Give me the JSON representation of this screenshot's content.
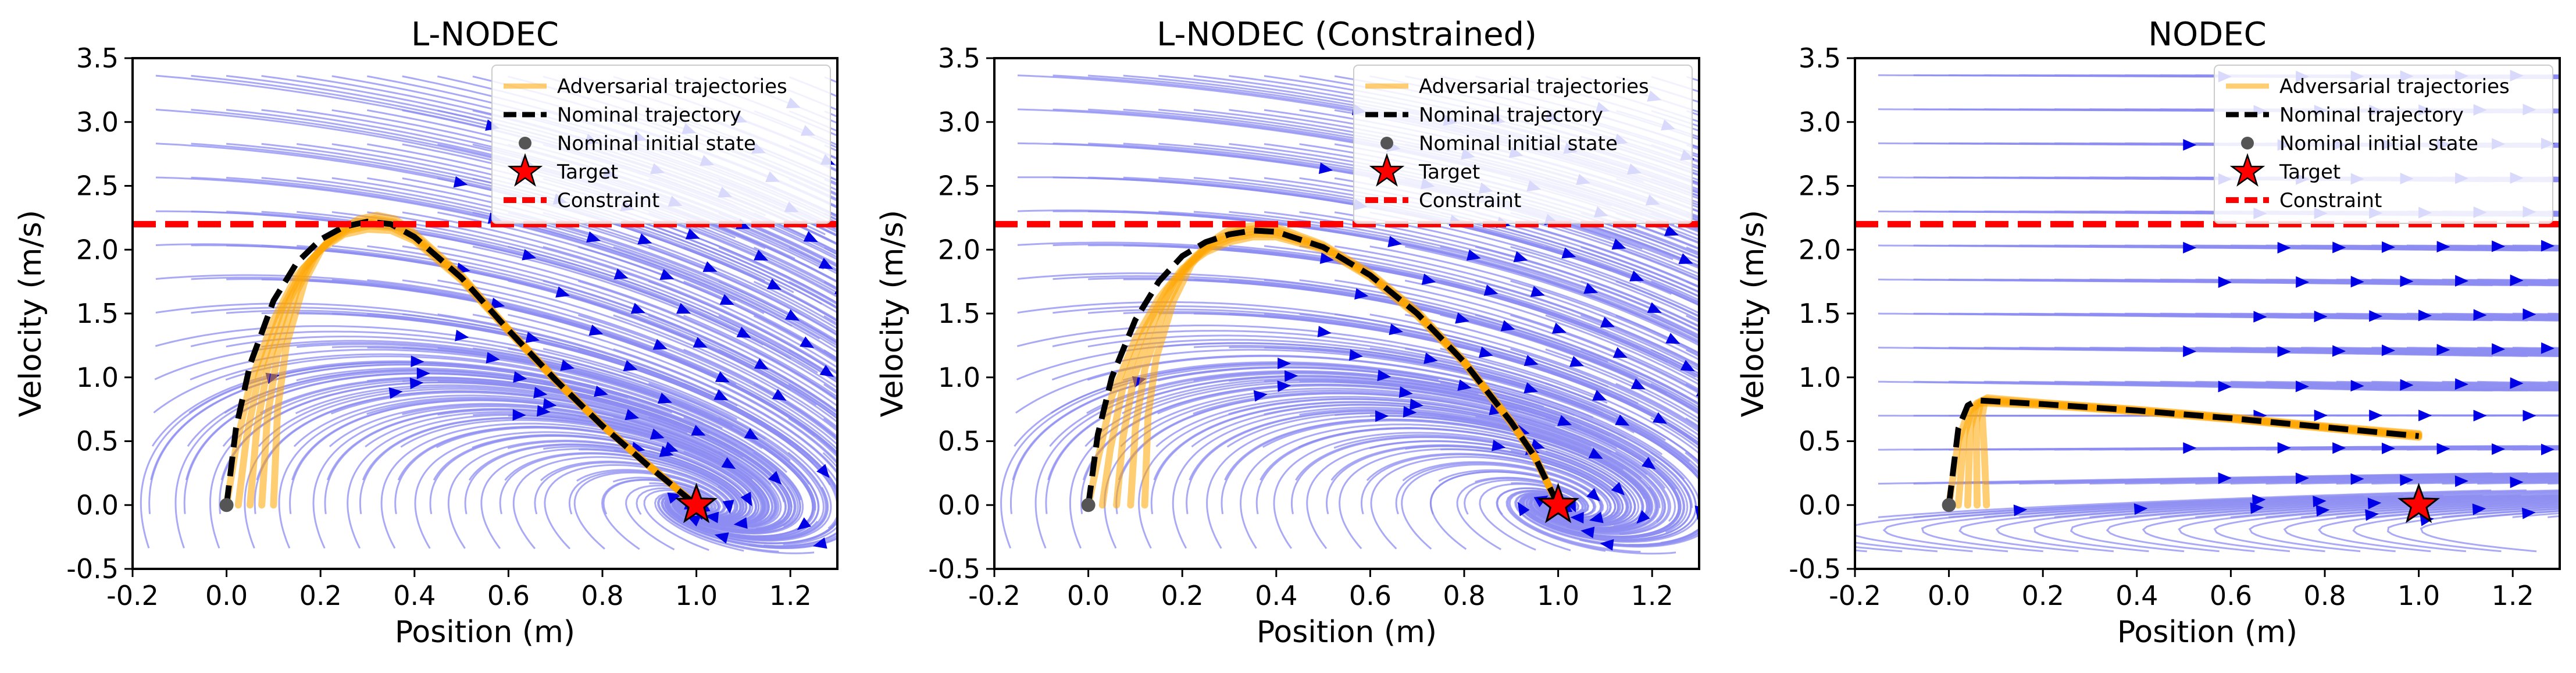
{
  "chart_data": [
    {
      "type": "line",
      "title": "L-NODEC",
      "xlabel": "Position (m)",
      "ylabel": "Velocity (m/s)",
      "xlim": [
        -0.2,
        1.3
      ],
      "ylim": [
        -0.5,
        3.5
      ],
      "xticks": [
        -0.2,
        0.0,
        0.2,
        0.4,
        0.6,
        0.8,
        1.0,
        1.2
      ],
      "yticks": [
        -0.5,
        0.0,
        0.5,
        1.0,
        1.5,
        2.0,
        2.5,
        3.0,
        3.5
      ],
      "xtick_labels": [
        "-0.2",
        "0.0",
        "0.2",
        "0.4",
        "0.6",
        "0.8",
        "1.0",
        "1.2"
      ],
      "ytick_labels": [
        "-0.5",
        "0.0",
        "0.5",
        "1.0",
        "1.5",
        "2.0",
        "2.5",
        "3.0",
        "3.5"
      ],
      "grid": false,
      "legend_position": "top-right",
      "constraint_y": 2.2,
      "target": [
        1.0,
        0.0
      ],
      "nominal_initial_state": [
        0.0,
        0.0
      ],
      "nominal_trajectory": {
        "x": [
          0.0,
          0.02,
          0.05,
          0.1,
          0.15,
          0.2,
          0.25,
          0.3,
          0.35,
          0.4,
          0.5,
          0.6,
          0.7,
          0.8,
          0.9,
          1.0
        ],
        "y": [
          0.0,
          0.6,
          1.1,
          1.6,
          1.9,
          2.08,
          2.18,
          2.22,
          2.2,
          2.1,
          1.78,
          1.37,
          0.98,
          0.62,
          0.3,
          0.0
        ]
      },
      "adversarial_band": {
        "x": [
          0.0,
          0.02,
          0.05,
          0.1,
          0.15,
          0.2,
          0.25,
          0.3,
          0.35,
          0.4,
          0.5,
          0.6,
          0.7,
          0.8,
          0.9,
          1.0
        ],
        "lower": [
          0.0,
          0.45,
          0.95,
          1.45,
          1.8,
          2.0,
          2.12,
          2.16,
          2.15,
          2.07,
          1.76,
          1.36,
          0.97,
          0.62,
          0.3,
          0.0
        ],
        "upper": [
          0.0,
          0.75,
          1.25,
          1.75,
          2.02,
          2.16,
          2.24,
          2.27,
          2.24,
          2.13,
          1.8,
          1.38,
          0.99,
          0.63,
          0.31,
          0.0
        ],
        "x_start_width": 0.1
      },
      "legend": [
        "Adversarial trajectories",
        "Nominal trajectory",
        "Nominal initial state",
        "Target",
        "Constraint"
      ],
      "field": "lnodec"
    },
    {
      "type": "line",
      "title": "L-NODEC (Constrained)",
      "xlabel": "Position (m)",
      "ylabel": "Velocity (m/s)",
      "xlim": [
        -0.2,
        1.3
      ],
      "ylim": [
        -0.5,
        3.5
      ],
      "xticks": [
        -0.2,
        0.0,
        0.2,
        0.4,
        0.6,
        0.8,
        1.0,
        1.2
      ],
      "yticks": [
        -0.5,
        0.0,
        0.5,
        1.0,
        1.5,
        2.0,
        2.5,
        3.0,
        3.5
      ],
      "xtick_labels": [
        "-0.2",
        "0.0",
        "0.2",
        "0.4",
        "0.6",
        "0.8",
        "1.0",
        "1.2"
      ],
      "ytick_labels": [
        "-0.5",
        "0.0",
        "0.5",
        "1.0",
        "1.5",
        "2.0",
        "2.5",
        "3.0",
        "3.5"
      ],
      "grid": false,
      "legend_position": "top-right",
      "constraint_y": 2.2,
      "target": [
        1.0,
        0.0
      ],
      "nominal_initial_state": [
        0.0,
        0.0
      ],
      "nominal_trajectory": {
        "x": [
          0.0,
          0.02,
          0.05,
          0.1,
          0.15,
          0.2,
          0.25,
          0.3,
          0.35,
          0.4,
          0.5,
          0.6,
          0.7,
          0.8,
          0.9,
          0.95,
          1.0
        ],
        "y": [
          0.0,
          0.55,
          1.0,
          1.45,
          1.75,
          1.95,
          2.06,
          2.12,
          2.15,
          2.14,
          2.02,
          1.8,
          1.5,
          1.12,
          0.65,
          0.38,
          0.0
        ]
      },
      "adversarial_band": {
        "x": [
          0.0,
          0.02,
          0.05,
          0.1,
          0.15,
          0.2,
          0.25,
          0.3,
          0.35,
          0.4,
          0.5,
          0.6,
          0.7,
          0.8,
          0.9,
          0.95,
          1.0
        ],
        "lower": [
          0.0,
          0.35,
          0.85,
          1.3,
          1.62,
          1.85,
          1.98,
          2.06,
          2.1,
          2.1,
          2.0,
          1.78,
          1.48,
          1.11,
          0.64,
          0.37,
          0.0
        ],
        "upper": [
          0.0,
          0.7,
          1.15,
          1.6,
          1.88,
          2.05,
          2.14,
          2.18,
          2.19,
          2.17,
          2.04,
          1.82,
          1.52,
          1.13,
          0.66,
          0.39,
          0.0
        ],
        "x_start_width": 0.12
      },
      "legend": [
        "Adversarial trajectories",
        "Nominal trajectory",
        "Nominal initial state",
        "Target",
        "Constraint"
      ],
      "field": "lnodec_c"
    },
    {
      "type": "line",
      "title": "NODEC",
      "xlabel": "Position (m)",
      "ylabel": "Velocity (m/s)",
      "xlim": [
        -0.2,
        1.3
      ],
      "ylim": [
        -0.5,
        3.5
      ],
      "xticks": [
        -0.2,
        0.0,
        0.2,
        0.4,
        0.6,
        0.8,
        1.0,
        1.2
      ],
      "yticks": [
        -0.5,
        0.0,
        0.5,
        1.0,
        1.5,
        2.0,
        2.5,
        3.0,
        3.5
      ],
      "xtick_labels": [
        "-0.2",
        "0.0",
        "0.2",
        "0.4",
        "0.6",
        "0.8",
        "1.0",
        "1.2"
      ],
      "ytick_labels": [
        "-0.5",
        "0.0",
        "0.5",
        "1.0",
        "1.5",
        "2.0",
        "2.5",
        "3.0",
        "3.5"
      ],
      "grid": false,
      "legend_position": "top-right",
      "constraint_y": 2.2,
      "target": [
        1.0,
        0.0
      ],
      "nominal_initial_state": [
        0.0,
        0.0
      ],
      "nominal_trajectory": {
        "x": [
          0.0,
          0.01,
          0.02,
          0.04,
          0.06,
          0.2,
          0.4,
          0.6,
          0.8,
          1.0
        ],
        "y": [
          0.0,
          0.3,
          0.6,
          0.78,
          0.82,
          0.79,
          0.74,
          0.68,
          0.61,
          0.54
        ]
      },
      "adversarial_band": {
        "x": [
          0.0,
          0.01,
          0.02,
          0.04,
          0.06,
          0.2,
          0.4,
          0.6,
          0.8,
          1.0
        ],
        "lower": [
          0.0,
          0.25,
          0.5,
          0.72,
          0.8,
          0.78,
          0.73,
          0.67,
          0.6,
          0.53
        ],
        "upper": [
          0.0,
          0.4,
          0.7,
          0.82,
          0.84,
          0.8,
          0.75,
          0.69,
          0.62,
          0.56
        ],
        "x_start_width": 0.08
      },
      "legend": [
        "Adversarial trajectories",
        "Nominal trajectory",
        "Nominal initial state",
        "Target",
        "Constraint"
      ],
      "field": "nodec"
    }
  ],
  "colors": {
    "streamline": "#8c8cf2",
    "arrow": "#0000e6",
    "adversarial": "#ffa500",
    "nominal": "#000000",
    "initial_state": "#555555",
    "target_fill": "#ff0000",
    "constraint": "#ff0000"
  }
}
